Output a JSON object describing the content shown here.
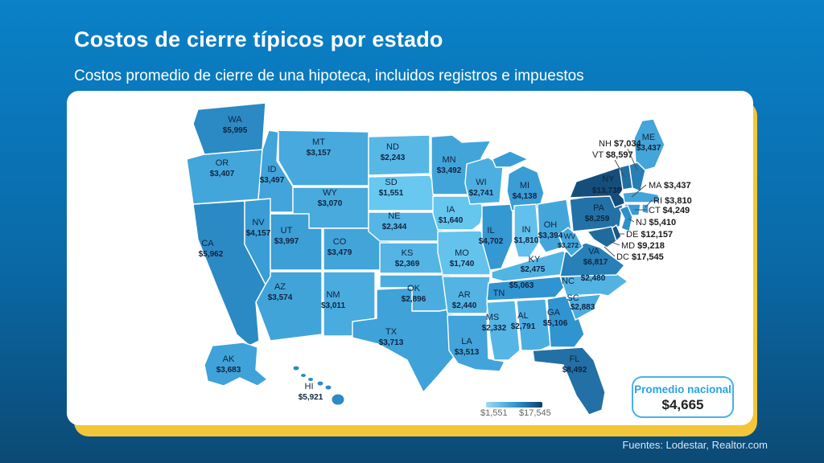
{
  "header": {
    "title": "Costos de cierre típicos por estado",
    "subtitle": "Costos promedio de cierre de una hipoteca, incluidos registros e impuestos"
  },
  "legend": {
    "min_label": "$1,551",
    "max_label": "$17,545"
  },
  "average_box": {
    "title": "Promedio nacional",
    "value": "$4,665"
  },
  "footer": {
    "sources": "Fuentes: Lodestar, Realtor.com"
  },
  "colors": {
    "background_top": "#0a81c8",
    "background_bottom": "#0c4a75",
    "card": "#ffffff",
    "card_shadow": "#f2c638",
    "scale_min": "#68c8f0",
    "scale_mid": "#2f93cf",
    "scale_max": "#0e3d66",
    "legend_light": "#9ed9f4",
    "state_border": "#ffffff",
    "label_text": "#12233f",
    "callout_text": "#1a1a1a",
    "accent_border": "#49b2e8",
    "avg_title_text": "#29a3e3"
  },
  "chart_data": {
    "type": "choropleth",
    "title": "Costos de cierre típicos por estado",
    "subtitle": "Costos promedio de cierre de una hipoteca, incluidos registros e impuestos",
    "region": "USA states + DC",
    "unit": "USD",
    "value_range": [
      1551,
      17545
    ],
    "legend": {
      "min_label": "$1,551",
      "max_label": "$17,545"
    },
    "national_average": {
      "label": "Promedio nacional",
      "value": 4665,
      "value_label": "$4,665"
    },
    "states": [
      {
        "abbr": "WA",
        "value": 5995,
        "label": "$5,995"
      },
      {
        "abbr": "OR",
        "value": 3407,
        "label": "$3,407"
      },
      {
        "abbr": "CA",
        "value": 5962,
        "label": "$5,962"
      },
      {
        "abbr": "NV",
        "value": 4157,
        "label": "$4,157"
      },
      {
        "abbr": "ID",
        "value": 3497,
        "label": "$3,497"
      },
      {
        "abbr": "MT",
        "value": 3157,
        "label": "$3,157"
      },
      {
        "abbr": "WY",
        "value": 3070,
        "label": "$3,070"
      },
      {
        "abbr": "UT",
        "value": 3997,
        "label": "$3,997"
      },
      {
        "abbr": "CO",
        "value": 3479,
        "label": "$3,479"
      },
      {
        "abbr": "AZ",
        "value": 3574,
        "label": "$3,574"
      },
      {
        "abbr": "NM",
        "value": 3011,
        "label": "$3,011"
      },
      {
        "abbr": "ND",
        "value": 2243,
        "label": "$2,243"
      },
      {
        "abbr": "SD",
        "value": 1551,
        "label": "$1,551"
      },
      {
        "abbr": "NE",
        "value": 2344,
        "label": "$2,344"
      },
      {
        "abbr": "KS",
        "value": 2369,
        "label": "$2,369"
      },
      {
        "abbr": "OK",
        "value": 2896,
        "label": "$2,896"
      },
      {
        "abbr": "TX",
        "value": 3713,
        "label": "$3,713"
      },
      {
        "abbr": "MN",
        "value": 3492,
        "label": "$3,492"
      },
      {
        "abbr": "IA",
        "value": 1640,
        "label": "$1,640"
      },
      {
        "abbr": "MO",
        "value": 1740,
        "label": "$1,740"
      },
      {
        "abbr": "AR",
        "value": 2440,
        "label": "$2,440"
      },
      {
        "abbr": "LA",
        "value": 3513,
        "label": "$3,513"
      },
      {
        "abbr": "WI",
        "value": 2741,
        "label": "$2,741"
      },
      {
        "abbr": "IL",
        "value": 4702,
        "label": "$4,702"
      },
      {
        "abbr": "MI",
        "value": 4138,
        "label": "$4,138"
      },
      {
        "abbr": "IN",
        "value": 1810,
        "label": "$1,810"
      },
      {
        "abbr": "OH",
        "value": 3394,
        "label": "$3,394"
      },
      {
        "abbr": "KY",
        "value": 2475,
        "label": "$2,475"
      },
      {
        "abbr": "TN",
        "value": 5063,
        "label": "$5,063"
      },
      {
        "abbr": "MS",
        "value": 2332,
        "label": "$2,332"
      },
      {
        "abbr": "AL",
        "value": 2791,
        "label": "$2,791"
      },
      {
        "abbr": "GA",
        "value": 5106,
        "label": "$5,106"
      },
      {
        "abbr": "SC",
        "value": 2883,
        "label": "$2,883"
      },
      {
        "abbr": "NC",
        "value": 2480,
        "label": "$2,480"
      },
      {
        "abbr": "VA",
        "value": 6817,
        "label": "$6,817"
      },
      {
        "abbr": "WV",
        "value": 3272,
        "label": "$3,272"
      },
      {
        "abbr": "FL",
        "value": 8492,
        "label": "$8,492"
      },
      {
        "abbr": "PA",
        "value": 8259,
        "label": "$8,259"
      },
      {
        "abbr": "NY",
        "value": 13738,
        "label": "$13,738"
      },
      {
        "abbr": "ME",
        "value": 3437,
        "label": "$3,437"
      },
      {
        "abbr": "NH",
        "value": 7034,
        "label": "$7,034"
      },
      {
        "abbr": "VT",
        "value": 8597,
        "label": "$8,597"
      },
      {
        "abbr": "MA",
        "value": 3437,
        "label": "$3,437"
      },
      {
        "abbr": "RI",
        "value": 3810,
        "label": "$3,810"
      },
      {
        "abbr": "CT",
        "value": 4249,
        "label": "$4,249"
      },
      {
        "abbr": "NJ",
        "value": 5410,
        "label": "$5,410"
      },
      {
        "abbr": "DE",
        "value": 12157,
        "label": "$12,157"
      },
      {
        "abbr": "MD",
        "value": 9218,
        "label": "$9,218"
      },
      {
        "abbr": "DC",
        "value": 17545,
        "label": "$17,545"
      },
      {
        "abbr": "AK",
        "value": 3683,
        "label": "$3,683"
      },
      {
        "abbr": "HI",
        "value": 5921,
        "label": "$5,921"
      }
    ]
  }
}
